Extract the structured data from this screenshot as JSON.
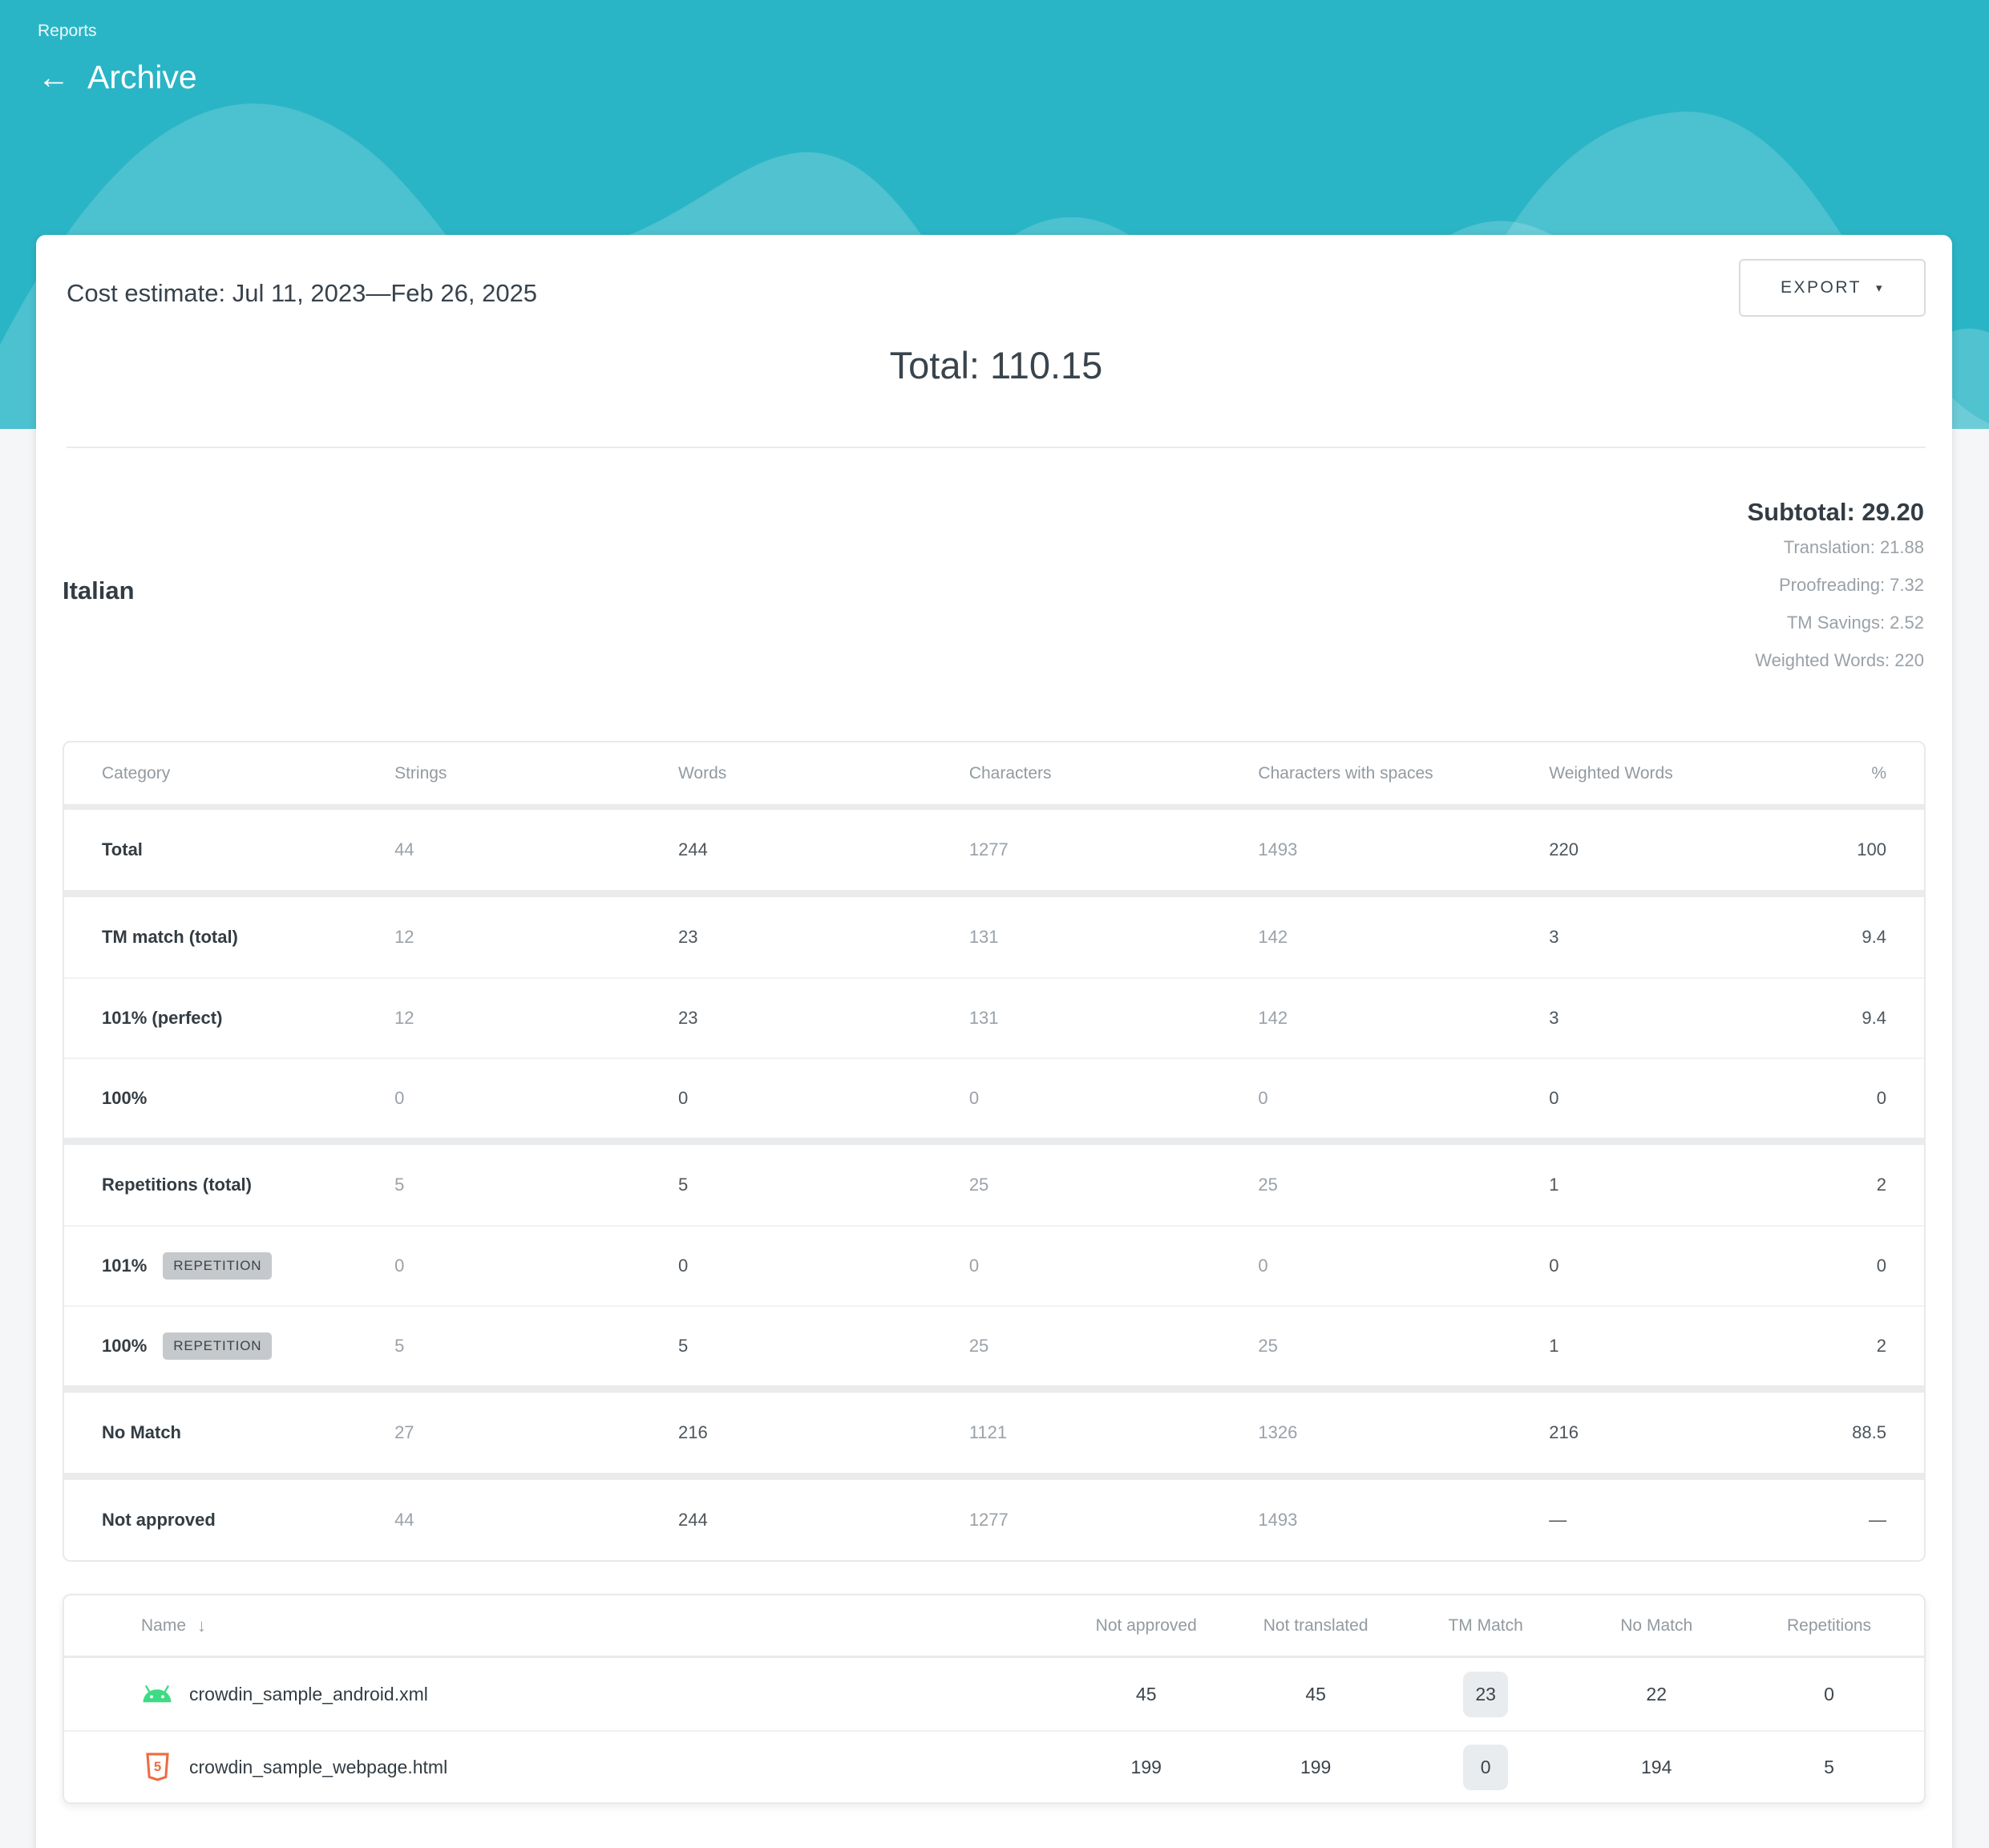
{
  "header": {
    "breadcrumb": "Reports",
    "title": "Archive"
  },
  "icons": {
    "back": "←",
    "caret": "▾",
    "sort": "↓"
  },
  "report": {
    "title": "Cost estimate: Jul 11, 2023—Feb 26, 2025",
    "export_label": "EXPORT",
    "total": "Total: 110.15"
  },
  "language": {
    "name": "Italian",
    "subtotal": "Subtotal: 29.20",
    "details": [
      "Translation: 21.88",
      "Proofreading: 7.32",
      "TM Savings: 2.52",
      "Weighted Words: 220"
    ]
  },
  "cost_table": {
    "columns": [
      "Category",
      "Strings",
      "Words",
      "Characters",
      "Characters with spaces",
      "Weighted Words",
      "%"
    ],
    "muted_value_columns": [
      0,
      2,
      3
    ],
    "groups": [
      [
        {
          "category": "Total",
          "badge": null,
          "values": [
            "44",
            "244",
            "1277",
            "1493",
            "220",
            "100"
          ]
        }
      ],
      [
        {
          "category": "TM match (total)",
          "badge": null,
          "values": [
            "12",
            "23",
            "131",
            "142",
            "3",
            "9.4"
          ]
        },
        {
          "category": "101% (perfect)",
          "badge": null,
          "values": [
            "12",
            "23",
            "131",
            "142",
            "3",
            "9.4"
          ]
        },
        {
          "category": "100%",
          "badge": null,
          "values": [
            "0",
            "0",
            "0",
            "0",
            "0",
            "0"
          ]
        }
      ],
      [
        {
          "category": "Repetitions (total)",
          "badge": null,
          "values": [
            "5",
            "5",
            "25",
            "25",
            "1",
            "2"
          ]
        },
        {
          "category": "101%",
          "badge": "REPETITION",
          "values": [
            "0",
            "0",
            "0",
            "0",
            "0",
            "0"
          ]
        },
        {
          "category": "100%",
          "badge": "REPETITION",
          "values": [
            "5",
            "5",
            "25",
            "25",
            "1",
            "2"
          ]
        }
      ],
      [
        {
          "category": "No Match",
          "badge": null,
          "values": [
            "27",
            "216",
            "1121",
            "1326",
            "216",
            "88.5"
          ]
        }
      ],
      [
        {
          "category": "Not approved",
          "badge": null,
          "values": [
            "44",
            "244",
            "1277",
            "1493",
            "—",
            "—"
          ]
        }
      ]
    ]
  },
  "files_table": {
    "columns": [
      "Name",
      "Not approved",
      "Not translated",
      "TM Match",
      "No Match",
      "Repetitions"
    ],
    "badge_column_index": 2,
    "rows": [
      {
        "icon": "android",
        "name": "crowdin_sample_android.xml",
        "values": [
          "45",
          "45",
          "23",
          "22",
          "0"
        ]
      },
      {
        "icon": "html",
        "name": "crowdin_sample_webpage.html",
        "values": [
          "199",
          "199",
          "0",
          "194",
          "5"
        ]
      }
    ]
  },
  "colors": {
    "hero_teal": "#2ab5c6",
    "android_green": "#3ddc84",
    "html_orange": "#ef6b3f",
    "badge_gray": "#c5c9cc",
    "pill_gray": "#e9ecee"
  }
}
